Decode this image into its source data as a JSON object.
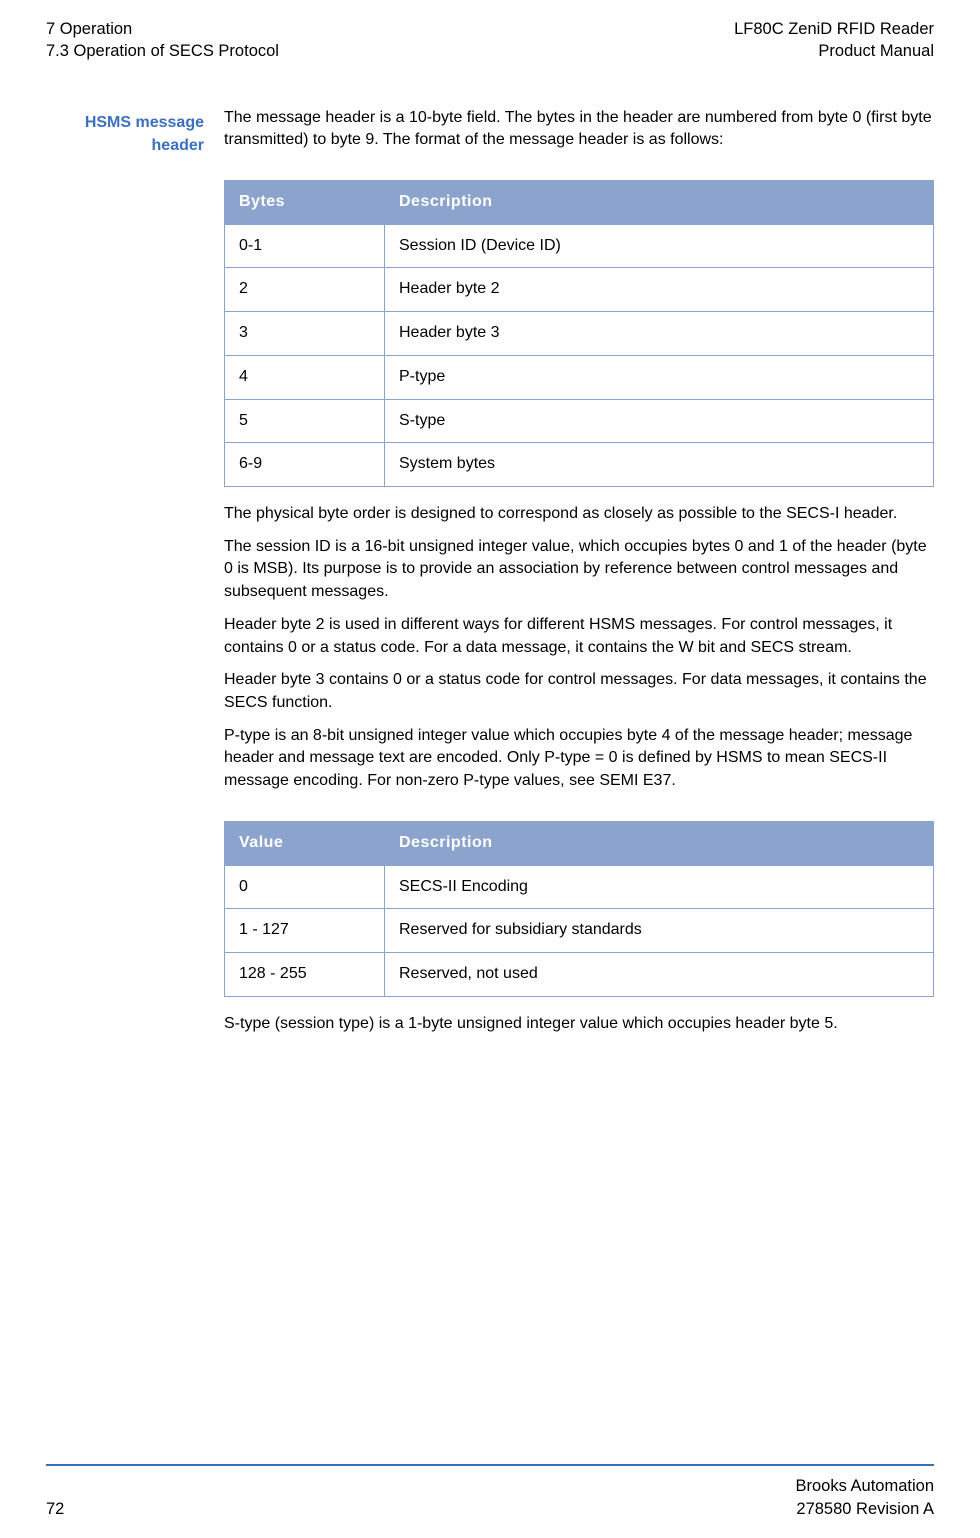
{
  "header": {
    "top_left_1": "7 Operation",
    "top_left_2": "7.3 Operation of SECS Protocol",
    "top_right_1": "LF80C ZeniD RFID Reader",
    "top_right_2": "Product Manual"
  },
  "section": {
    "side_heading_1": "HSMS message",
    "side_heading_2": "header",
    "intro": "The message header is a 10-byte field. The bytes in the header are numbered from byte 0 (first byte transmitted) to byte 9. The format of the message header is as follows:"
  },
  "table1": {
    "col1": "Bytes",
    "col2": "Description",
    "rows": [
      {
        "c1": "0-1",
        "c2": "Session ID (Device ID)"
      },
      {
        "c1": "2",
        "c2": "Header byte 2"
      },
      {
        "c1": "3",
        "c2": "Header byte 3"
      },
      {
        "c1": "4",
        "c2": "P-type"
      },
      {
        "c1": "5",
        "c2": "S-type"
      },
      {
        "c1": "6-9",
        "c2": "System bytes"
      }
    ]
  },
  "body": {
    "p1": "The physical byte order is designed to correspond as closely as possible to the SECS-I header.",
    "p2": "The session ID is a 16-bit unsigned integer value, which occupies bytes 0 and 1 of the header (byte 0 is MSB). Its purpose is to provide an association by reference between control messages and subsequent messages.",
    "p3": "Header byte 2 is used in different ways for different HSMS messages. For control messages, it contains 0 or a status code. For a data message, it contains the W bit and SECS stream.",
    "p4": "Header byte 3 contains 0 or a status code for control messages. For data messages, it contains the SECS function.",
    "p5": "P-type is an 8-bit unsigned integer value which occupies byte 4 of the message header; message header and message text are encoded. Only P-type = 0 is defined by HSMS to mean SECS-II message encoding. For non-zero P-type values, see SEMI E37."
  },
  "table2": {
    "col1": "Value",
    "col2": "Description",
    "rows": [
      {
        "c1": "0",
        "c2": "SECS-II Encoding"
      },
      {
        "c1": "1 - 127",
        "c2": "Reserved for subsidiary standards"
      },
      {
        "c1": "128 - 255",
        "c2": "Reserved, not used"
      }
    ]
  },
  "body2": {
    "p6": "S-type (session type) is a 1-byte unsigned integer value which occupies header byte 5."
  },
  "footer": {
    "page_number": "72",
    "right_1": "Brooks Automation",
    "right_2": "278580 Revision A"
  },
  "style": {
    "accent_color": "#3a70bf",
    "table_header_bg": "#8ca4cd",
    "table_header_fg": "#ffffff",
    "table_border": "#8ca4cd"
  }
}
